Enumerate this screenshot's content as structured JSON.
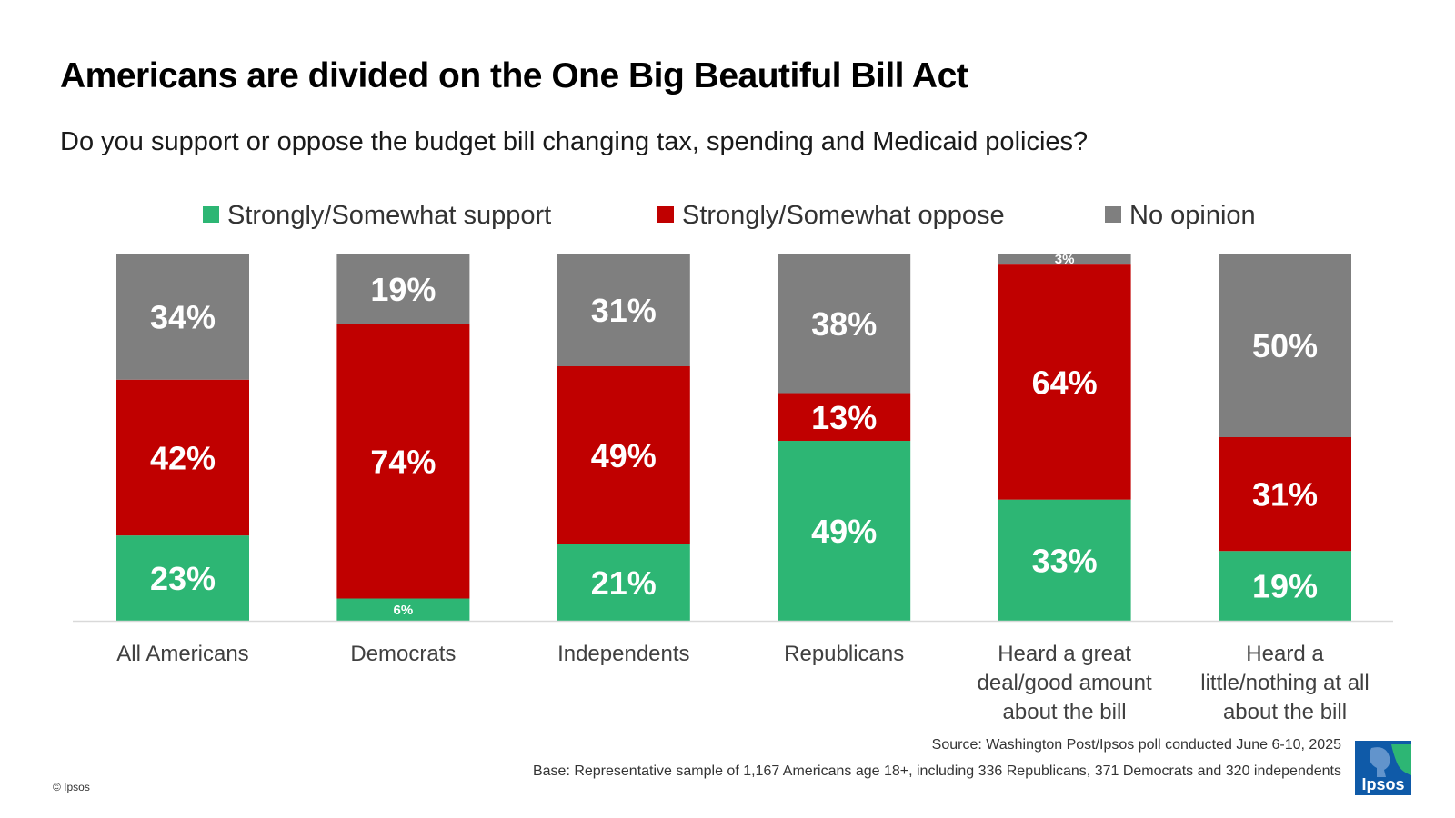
{
  "title": "Americans are divided on the One Big Beautiful Bill Act",
  "subtitle": "Do you support or oppose the budget bill changing tax, spending and Medicaid policies?",
  "footer": {
    "source": "Source: Washington Post/Ipsos poll conducted June 6-10, 2025",
    "base": "Base: Representative sample of  1,167 Americans age 18+, including 336 Republicans, 371 Democrats and 320 independents",
    "copyright": "© Ipsos",
    "logo_text": "Ipsos"
  },
  "colors": {
    "support": "#2db674",
    "oppose": "#c00000",
    "no_opinion": "#7f7f7f",
    "logo": "#0f5aa8"
  },
  "chart_data": {
    "type": "bar",
    "stacked": true,
    "percent_stacked": true,
    "ylim": [
      0,
      100
    ],
    "legend_position": "top",
    "grid": false,
    "categories": [
      [
        "All Americans"
      ],
      [
        "Democrats"
      ],
      [
        "Independents"
      ],
      [
        "Republicans"
      ],
      [
        "Heard a great",
        "deal/good amount",
        "about the bill"
      ],
      [
        "Heard a",
        "little/nothing at all",
        "about the bill"
      ]
    ],
    "series": [
      {
        "name": "Strongly/Somewhat support",
        "values": [
          23,
          6,
          21,
          49,
          33,
          19
        ],
        "labels": [
          "23%",
          "6%",
          "21%",
          "49%",
          "33%",
          "19%"
        ]
      },
      {
        "name": "Strongly/Somewhat oppose",
        "values": [
          42,
          74,
          49,
          13,
          64,
          31
        ],
        "labels": [
          "42%",
          "74%",
          "49%",
          "13%",
          "64%",
          "31%"
        ]
      },
      {
        "name": "No opinion",
        "values": [
          34,
          19,
          31,
          38,
          3,
          50
        ],
        "labels": [
          "34%",
          "19%",
          "31%",
          "38%",
          "3%",
          "50%"
        ]
      }
    ]
  }
}
